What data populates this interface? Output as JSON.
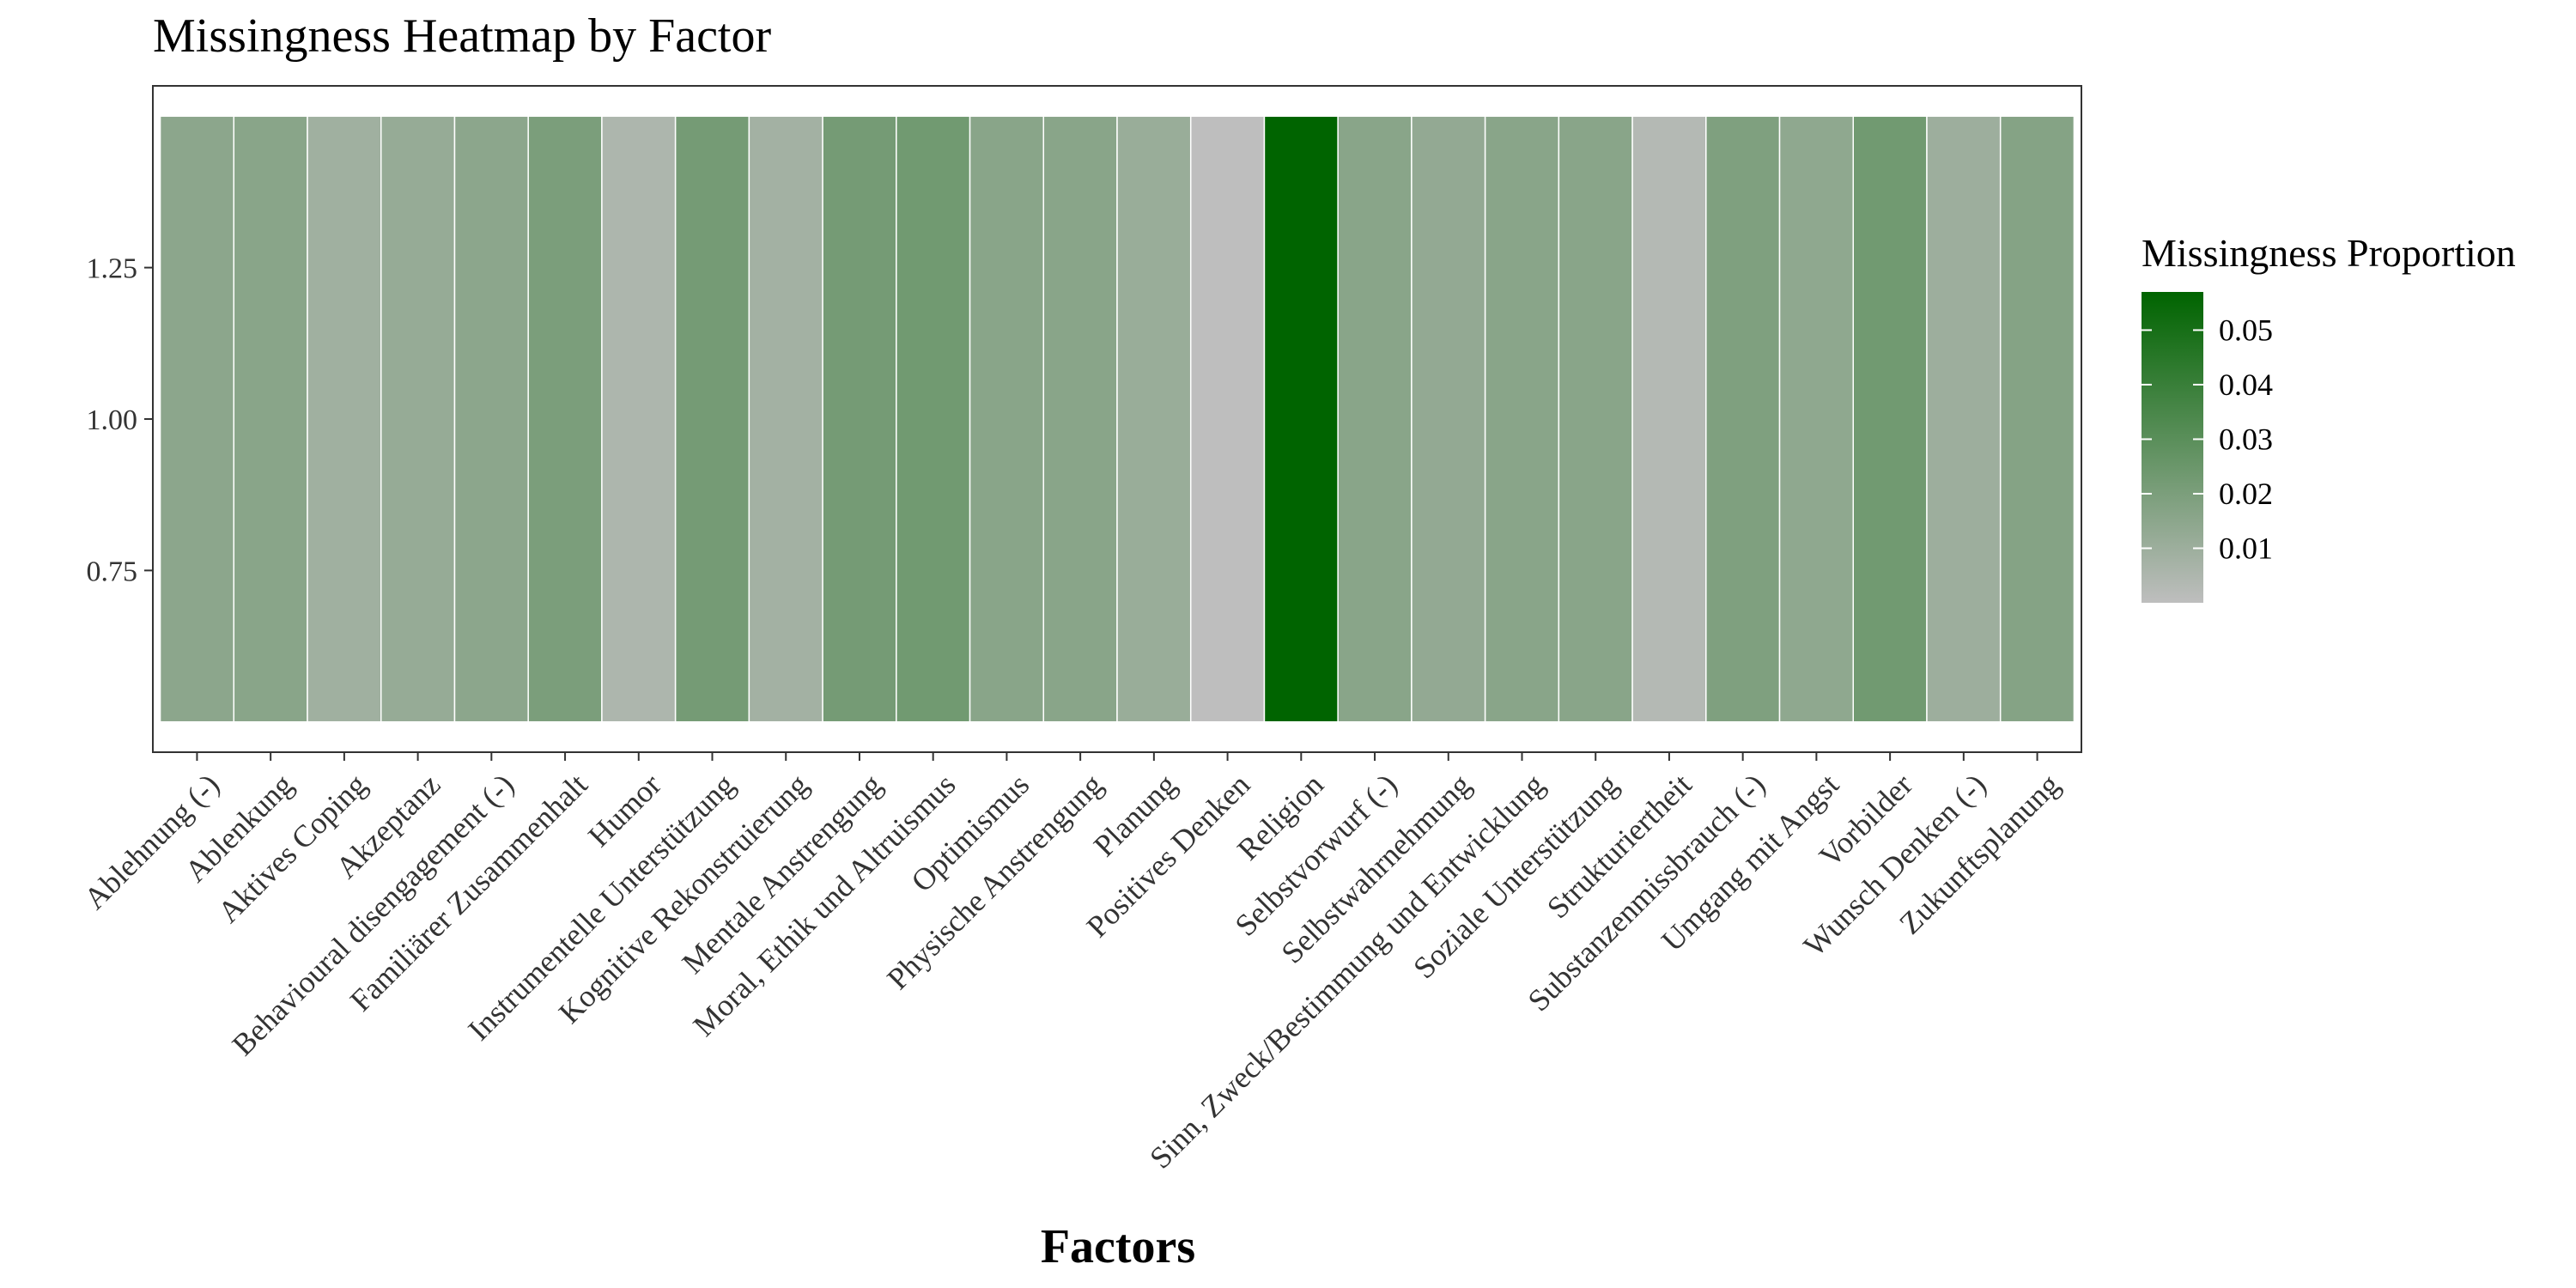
{
  "chart_data": {
    "type": "heatmap",
    "title": "Missingness Heatmap by Factor",
    "xlabel": "Factors",
    "ylabel": "",
    "ylim": [
      0.5,
      1.5
    ],
    "y_ticks": [
      "0.75",
      "1.00",
      "1.25"
    ],
    "y_tick_values": [
      0.75,
      1.0,
      1.25
    ],
    "tile_y": 1.0,
    "categories": [
      "Ablehnung (-)",
      "Ablenkung",
      "Aktives Coping",
      "Akzeptanz",
      "Behavioural disengagement (-)",
      "Familiärer Zusammenhalt",
      "Humor",
      "Instrumentelle Unterstützung",
      "Kognitive Rekonstruierung",
      "Mentale Anstrengung",
      "Moral, Ethik und Altruismus",
      "Optimismus",
      "Physische Anstrengung",
      "Planung",
      "Positives Denken",
      "Religion",
      "Selbstvorwurf (-)",
      "Selbstwahrnehmung",
      "Sinn, Zweck/Bestimmung und Entwicklung",
      "Soziale Unterstützung",
      "Strukturiertheit",
      "Substanzenmissbrauch (-)",
      "Umgang mit Angst",
      "Vorbilder",
      "Wunsch Denken (-)",
      "Zukunftsplanung"
    ],
    "values": [
      0.015,
      0.016,
      0.009,
      0.012,
      0.015,
      0.02,
      0.005,
      0.022,
      0.008,
      0.022,
      0.023,
      0.016,
      0.016,
      0.011,
      0.0,
      0.057,
      0.016,
      0.013,
      0.016,
      0.016,
      0.003,
      0.019,
      0.014,
      0.023,
      0.01,
      0.017
    ],
    "legend": {
      "title": "Missingness Proportion",
      "placement": "right",
      "min": 0.0,
      "max": 0.057,
      "ticks": [
        0.01,
        0.02,
        0.03,
        0.04,
        0.05
      ],
      "tick_labels": [
        "0.01",
        "0.02",
        "0.03",
        "0.04",
        "0.05"
      ]
    },
    "colors": {
      "low": "#bebebe",
      "high": "#006400",
      "tile_border": "#ffffff",
      "panel_border": "#333333"
    },
    "grid": false
  }
}
